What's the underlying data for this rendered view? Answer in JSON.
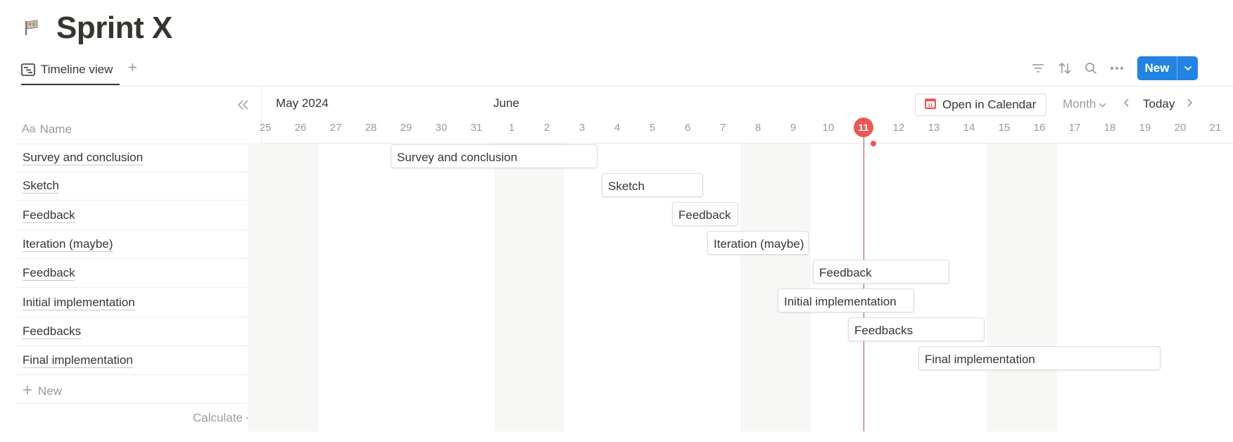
{
  "page": {
    "title": "Sprint X",
    "icon": "flag-icon"
  },
  "view": {
    "tab_label": "Timeline view",
    "add_view_label": "+"
  },
  "toolbar": {
    "new_label": "New"
  },
  "table": {
    "name_header": "Name",
    "name_header_prefix": "Aa",
    "rows": [
      "Survey and conclusion",
      "Sketch",
      "Feedback",
      "Iteration (maybe)",
      "Feedback",
      "Initial implementation",
      "Feedbacks",
      "Final implementation"
    ],
    "new_row_label": "New",
    "calculate_label": "Calculate"
  },
  "timeline": {
    "months": [
      {
        "label": "May 2024"
      },
      {
        "label": "June"
      }
    ],
    "days": [
      "25",
      "26",
      "27",
      "28",
      "29",
      "30",
      "31",
      "1",
      "2",
      "3",
      "4",
      "5",
      "6",
      "7",
      "8",
      "9",
      "10",
      "11",
      "12",
      "13",
      "14",
      "15",
      "16",
      "17",
      "18",
      "19",
      "20",
      "21"
    ],
    "today_label": "11",
    "today_index": 17,
    "open_in_calendar_label": "Open in Calendar",
    "range_selector": "Month",
    "today_button": "Today",
    "tasks": [
      {
        "label": "Survey and conclusion",
        "start": "2024-05-29",
        "end": "2024-06-03"
      },
      {
        "label": "Sketch",
        "start": "2024-06-04",
        "end": "2024-06-06"
      },
      {
        "label": "Feedback",
        "start": "2024-06-06",
        "end": "2024-06-07"
      },
      {
        "label": "Iteration (maybe)",
        "start": "2024-06-07",
        "end": "2024-06-09"
      },
      {
        "label": "Feedback",
        "start": "2024-06-10",
        "end": "2024-06-13"
      },
      {
        "label": "Initial implementation",
        "start": "2024-06-09",
        "end": "2024-06-12"
      },
      {
        "label": "Feedbacks",
        "start": "2024-06-11",
        "end": "2024-06-14"
      },
      {
        "label": "Final implementation",
        "start": "2024-06-13",
        "end": "2024-06-19"
      }
    ]
  },
  "colors": {
    "accent": "#2383e2",
    "today": "#eb5757",
    "text": "#37352f",
    "muted": "#9b9a97"
  }
}
